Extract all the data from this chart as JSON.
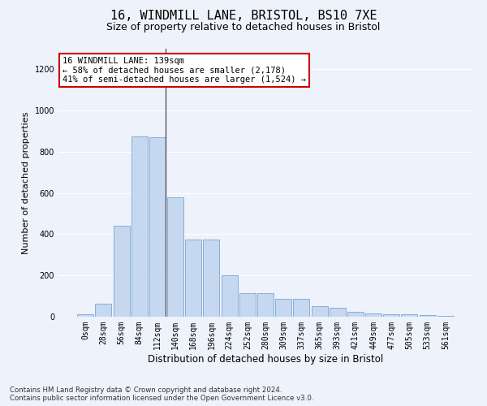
{
  "title": "16, WINDMILL LANE, BRISTOL, BS10 7XE",
  "subtitle": "Size of property relative to detached houses in Bristol",
  "xlabel": "Distribution of detached houses by size in Bristol",
  "ylabel": "Number of detached properties",
  "bar_values": [
    12,
    65,
    440,
    875,
    870,
    580,
    375,
    375,
    200,
    115,
    115,
    85,
    85,
    50,
    42,
    22,
    15,
    13,
    10,
    8,
    5
  ],
  "bin_labels": [
    "0sqm",
    "28sqm",
    "56sqm",
    "84sqm",
    "112sqm",
    "140sqm",
    "168sqm",
    "196sqm",
    "224sqm",
    "252sqm",
    "280sqm",
    "309sqm",
    "337sqm",
    "365sqm",
    "393sqm",
    "421sqm",
    "449sqm",
    "477sqm",
    "505sqm",
    "533sqm",
    "561sqm"
  ],
  "bar_color": "#c5d8f0",
  "bar_edge_color": "#6699cc",
  "highlight_bar_index": 4,
  "highlight_line_color": "#333333",
  "annotation_text": "16 WINDMILL LANE: 139sqm\n← 58% of detached houses are smaller (2,178)\n41% of semi-detached houses are larger (1,524) →",
  "annotation_box_color": "#ffffff",
  "annotation_box_edge_color": "#cc0000",
  "ylim": [
    0,
    1300
  ],
  "yticks": [
    0,
    200,
    400,
    600,
    800,
    1000,
    1200
  ],
  "background_color": "#eef2fa",
  "grid_color": "#ffffff",
  "footnote": "Contains HM Land Registry data © Crown copyright and database right 2024.\nContains public sector information licensed under the Open Government Licence v3.0.",
  "title_fontsize": 11,
  "subtitle_fontsize": 9,
  "xlabel_fontsize": 8.5,
  "ylabel_fontsize": 8,
  "tick_fontsize": 7
}
